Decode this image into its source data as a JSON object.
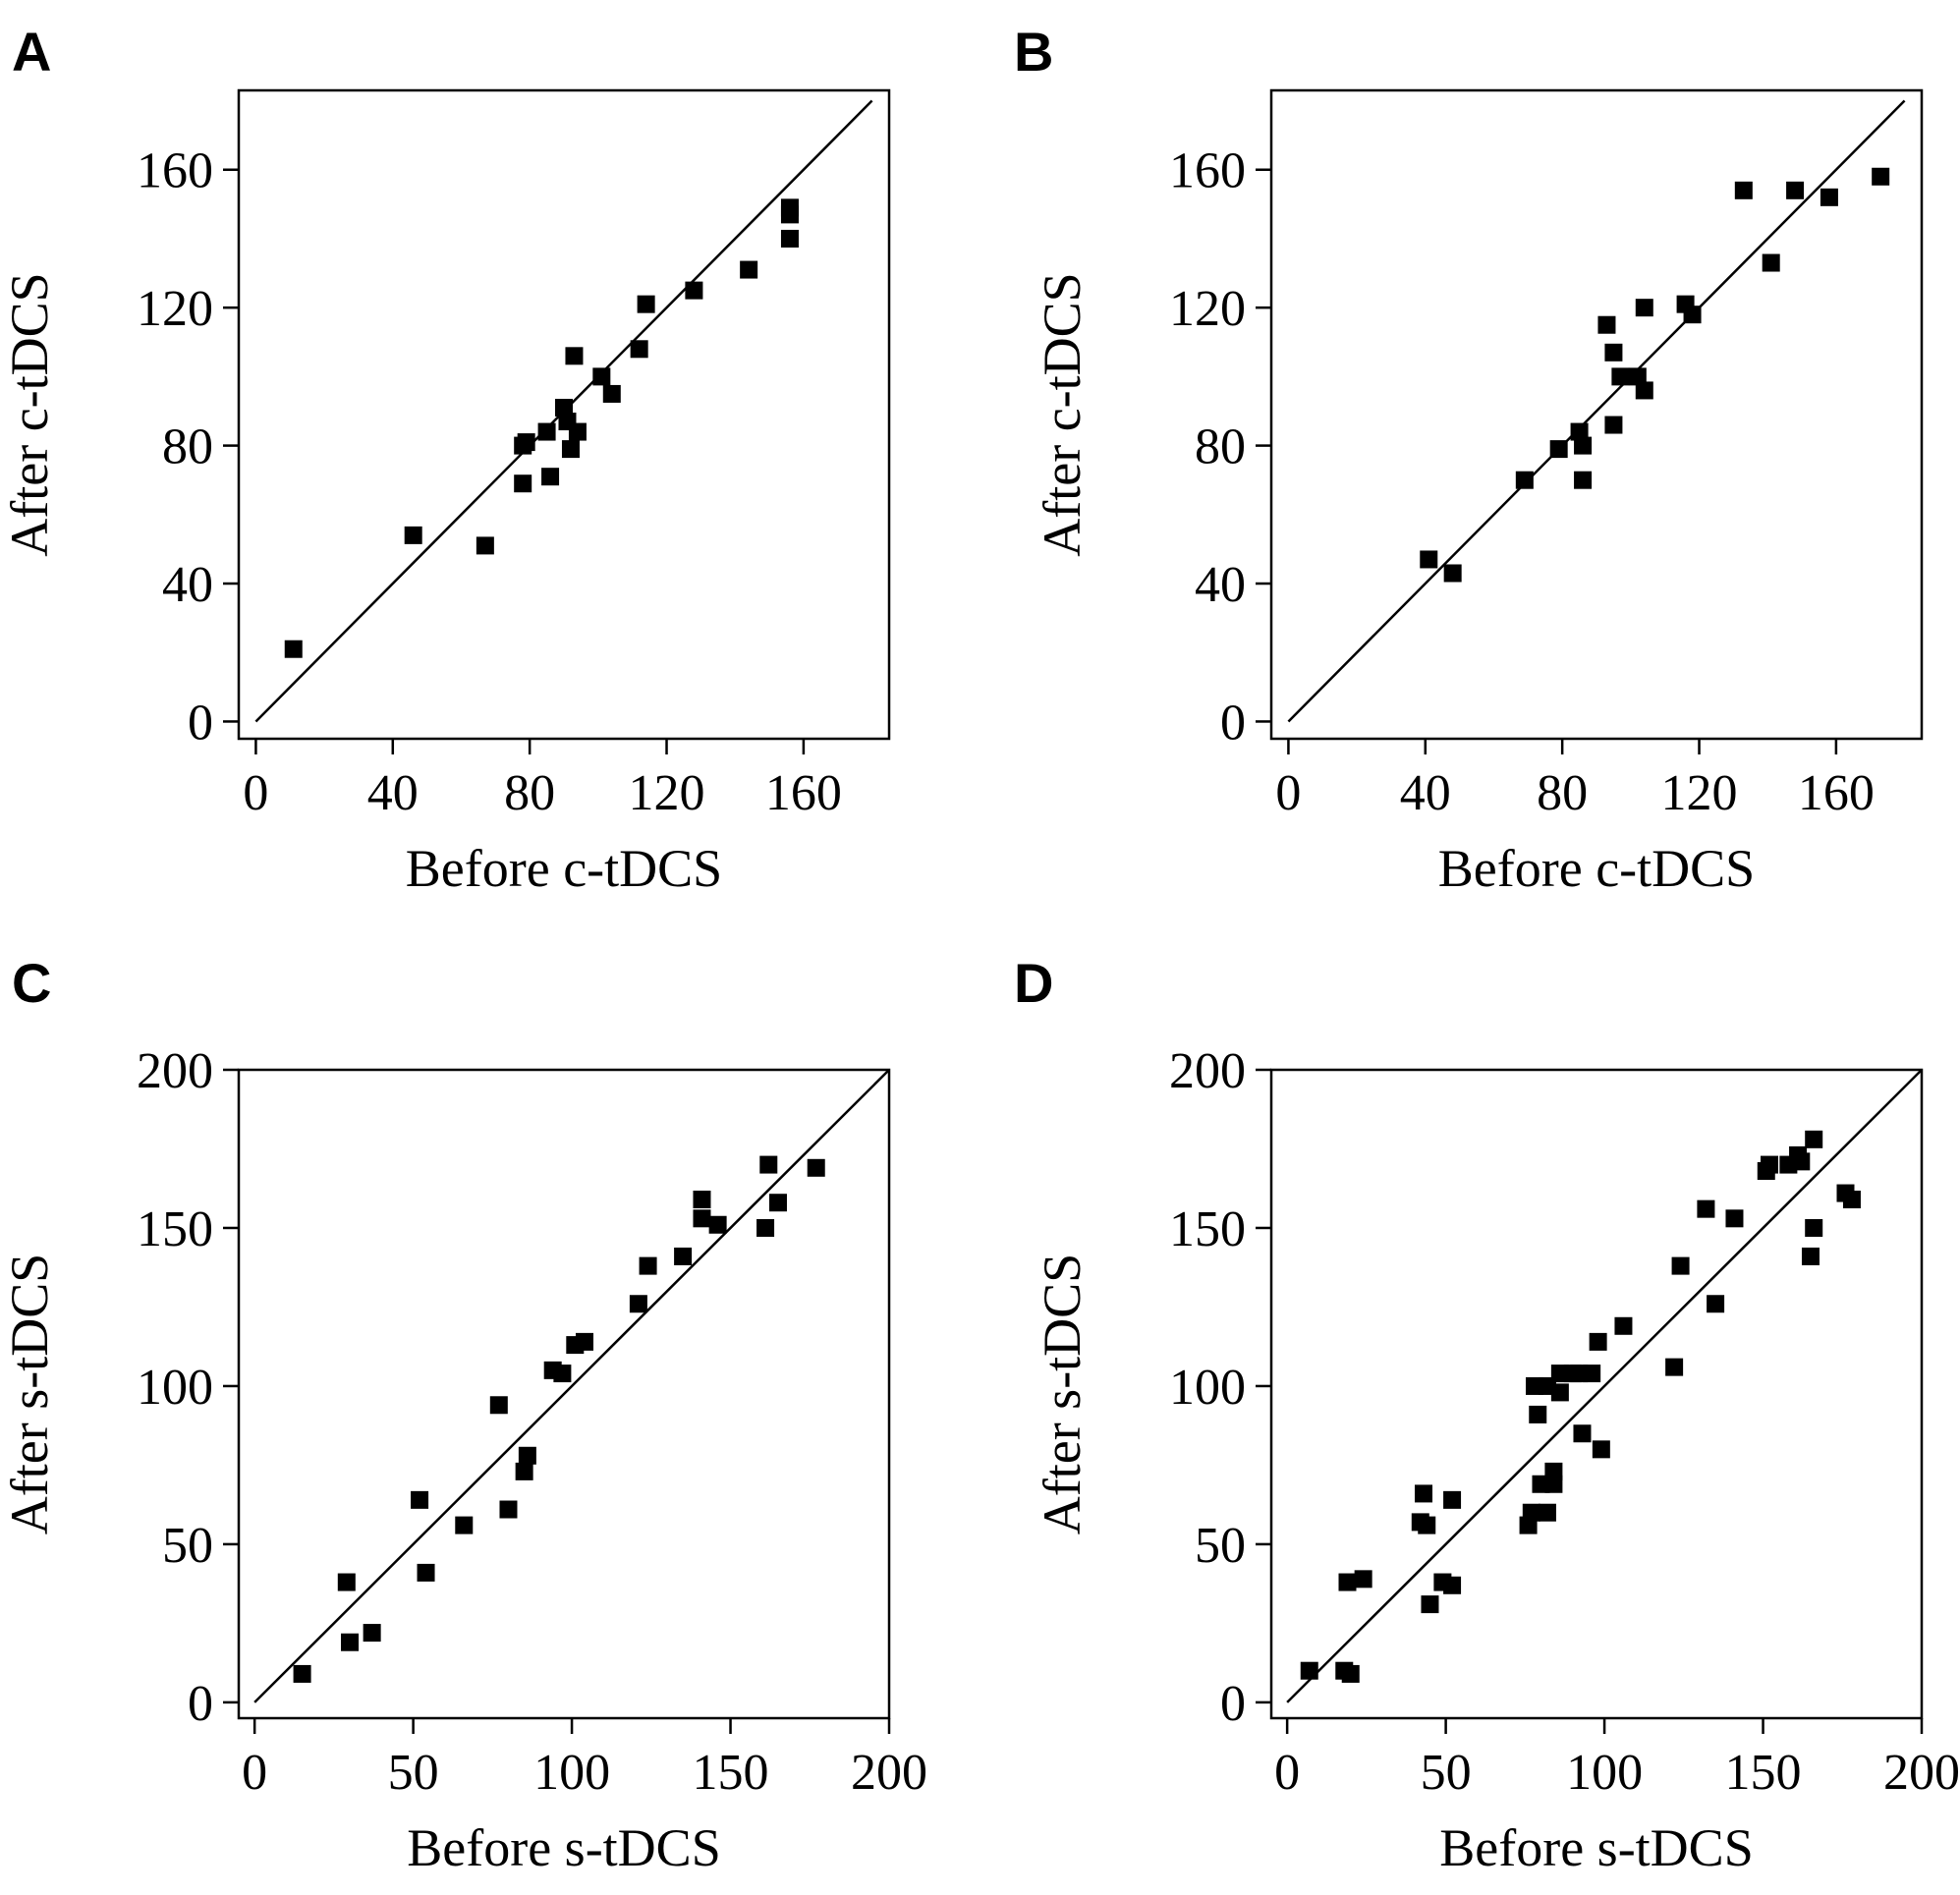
{
  "chart_data": [
    {
      "panel": "A",
      "type": "scatter",
      "xlabel": "Before c-tDCS",
      "ylabel": "After c-tDCS",
      "xlim": [
        -5,
        185
      ],
      "ylim": [
        -5,
        183
      ],
      "xticks": [
        0,
        40,
        80,
        120,
        160
      ],
      "yticks": [
        0,
        40,
        80,
        120,
        160
      ],
      "reference_line": [
        [
          0,
          0
        ],
        [
          180,
          180
        ]
      ],
      "points": [
        [
          11,
          21
        ],
        [
          46,
          54
        ],
        [
          67,
          51
        ],
        [
          78,
          80
        ],
        [
          79,
          81
        ],
        [
          78,
          69
        ],
        [
          86,
          71
        ],
        [
          85,
          84
        ],
        [
          90,
          91
        ],
        [
          91,
          87
        ],
        [
          92,
          79
        ],
        [
          94,
          84
        ],
        [
          93,
          106
        ],
        [
          101,
          100
        ],
        [
          104,
          95
        ],
        [
          112,
          108
        ],
        [
          114,
          121
        ],
        [
          128,
          125
        ],
        [
          144,
          131
        ],
        [
          156,
          149
        ],
        [
          156,
          147
        ],
        [
          156,
          140
        ]
      ]
    },
    {
      "panel": "B",
      "type": "scatter",
      "xlabel": "Before c-tDCS",
      "ylabel": "After c-tDCS",
      "xlim": [
        -5,
        185
      ],
      "ylim": [
        -5,
        183
      ],
      "xticks": [
        0,
        40,
        80,
        120,
        160
      ],
      "yticks": [
        0,
        40,
        80,
        120,
        160
      ],
      "reference_line": [
        [
          0,
          0
        ],
        [
          180,
          180
        ]
      ],
      "points": [
        [
          41,
          47
        ],
        [
          48,
          43
        ],
        [
          69,
          70
        ],
        [
          79,
          79
        ],
        [
          85,
          84
        ],
        [
          86,
          80
        ],
        [
          86,
          70
        ],
        [
          95,
          86
        ],
        [
          93,
          115
        ],
        [
          95,
          107
        ],
        [
          97,
          100
        ],
        [
          102,
          100
        ],
        [
          104,
          96
        ],
        [
          104,
          120
        ],
        [
          116,
          121
        ],
        [
          118,
          118
        ],
        [
          133,
          154
        ],
        [
          141,
          133
        ],
        [
          148,
          154
        ],
        [
          158,
          152
        ],
        [
          173,
          158
        ]
      ]
    },
    {
      "panel": "C",
      "type": "scatter",
      "xlabel": "Before s-tDCS",
      "ylabel": "After s-tDCS",
      "xlim": [
        -5,
        200
      ],
      "ylim": [
        -5,
        200
      ],
      "xticks": [
        0,
        50,
        100,
        150,
        200
      ],
      "yticks": [
        0,
        50,
        100,
        150,
        200
      ],
      "reference_line": [
        [
          0,
          0
        ],
        [
          200,
          200
        ]
      ],
      "points": [
        [
          15,
          9
        ],
        [
          29,
          38
        ],
        [
          30,
          19
        ],
        [
          37,
          22
        ],
        [
          52,
          64
        ],
        [
          54,
          41
        ],
        [
          66,
          56
        ],
        [
          77,
          94
        ],
        [
          80,
          61
        ],
        [
          85,
          73
        ],
        [
          86,
          78
        ],
        [
          94,
          105
        ],
        [
          97,
          104
        ],
        [
          101,
          113
        ],
        [
          104,
          114
        ],
        [
          121,
          126
        ],
        [
          124,
          138
        ],
        [
          135,
          141
        ],
        [
          141,
          153
        ],
        [
          141,
          159
        ],
        [
          146,
          151
        ],
        [
          161,
          150
        ],
        [
          162,
          170
        ],
        [
          165,
          158
        ],
        [
          177,
          169
        ]
      ]
    },
    {
      "panel": "D",
      "type": "scatter",
      "xlabel": "Before s-tDCS",
      "ylabel": "After s-tDCS",
      "xlim": [
        -5,
        200
      ],
      "ylim": [
        -5,
        200
      ],
      "xticks": [
        0,
        50,
        100,
        150,
        200
      ],
      "yticks": [
        0,
        50,
        100,
        150,
        200
      ],
      "reference_line": [
        [
          0,
          0
        ],
        [
          200,
          200
        ]
      ],
      "points": [
        [
          7,
          10
        ],
        [
          18,
          10
        ],
        [
          19,
          38
        ],
        [
          20,
          9
        ],
        [
          24,
          39
        ],
        [
          42,
          57
        ],
        [
          43,
          66
        ],
        [
          44,
          56
        ],
        [
          45,
          31
        ],
        [
          49,
          38
        ],
        [
          52,
          37
        ],
        [
          52,
          64
        ],
        [
          76,
          56
        ],
        [
          77,
          60
        ],
        [
          78,
          100
        ],
        [
          79,
          91
        ],
        [
          80,
          69
        ],
        [
          82,
          60
        ],
        [
          82,
          100
        ],
        [
          84,
          69
        ],
        [
          84,
          73
        ],
        [
          86,
          98
        ],
        [
          86,
          104
        ],
        [
          90,
          104
        ],
        [
          92,
          104
        ],
        [
          93,
          85
        ],
        [
          96,
          104
        ],
        [
          98,
          114
        ],
        [
          99,
          80
        ],
        [
          106,
          119
        ],
        [
          122,
          106
        ],
        [
          124,
          138
        ],
        [
          132,
          156
        ],
        [
          135,
          126
        ],
        [
          141,
          153
        ],
        [
          151,
          168
        ],
        [
          152,
          170
        ],
        [
          158,
          170
        ],
        [
          161,
          173
        ],
        [
          162,
          171
        ],
        [
          165,
          141
        ],
        [
          166,
          150
        ],
        [
          166,
          178
        ],
        [
          176,
          161
        ],
        [
          178,
          159
        ]
      ]
    }
  ]
}
